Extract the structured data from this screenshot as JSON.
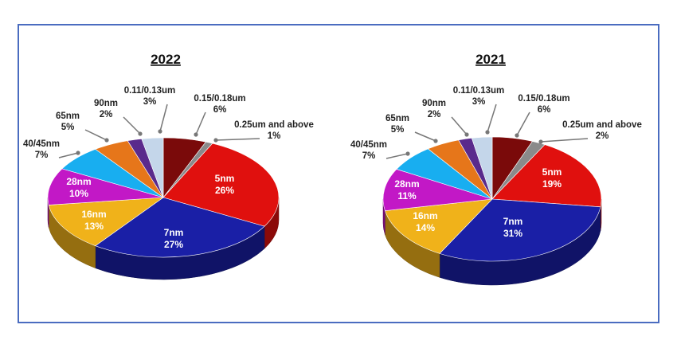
{
  "chart_data": [
    {
      "type": "pie",
      "title": "2022",
      "categories": [
        "5nm",
        "7nm",
        "16nm",
        "28nm",
        "40/45nm",
        "65nm",
        "90nm",
        "0.11/0.13um",
        "0.15/0.18um",
        "0.25um and above"
      ],
      "values": [
        26,
        27,
        13,
        10,
        7,
        5,
        2,
        3,
        6,
        1
      ],
      "value_labels": [
        "26%",
        "27%",
        "13%",
        "10%",
        "7%",
        "5%",
        "2%",
        "3%",
        "6%",
        "1%"
      ],
      "colors": [
        "#e0100e",
        "#1a1fa6",
        "#f0b21a",
        "#c218c6",
        "#18aef0",
        "#e6761a",
        "#5a2a8c",
        "#c4d6ea",
        "#7a0a0a",
        "#8a8a8a"
      ]
    },
    {
      "type": "pie",
      "title": "2021",
      "categories": [
        "5nm",
        "7nm",
        "16nm",
        "28nm",
        "40/45nm",
        "65nm",
        "90nm",
        "0.11/0.13um",
        "0.15/0.18um",
        "0.25um and above"
      ],
      "values": [
        19,
        31,
        14,
        11,
        7,
        5,
        2,
        3,
        6,
        2
      ],
      "value_labels": [
        "19%",
        "31%",
        "14%",
        "11%",
        "7%",
        "5%",
        "2%",
        "3%",
        "6%",
        "2%"
      ],
      "colors": [
        "#e0100e",
        "#1a1fa6",
        "#f0b21a",
        "#c218c6",
        "#18aef0",
        "#e6761a",
        "#5a2a8c",
        "#c4d6ea",
        "#7a0a0a",
        "#8a8a8a"
      ]
    }
  ]
}
